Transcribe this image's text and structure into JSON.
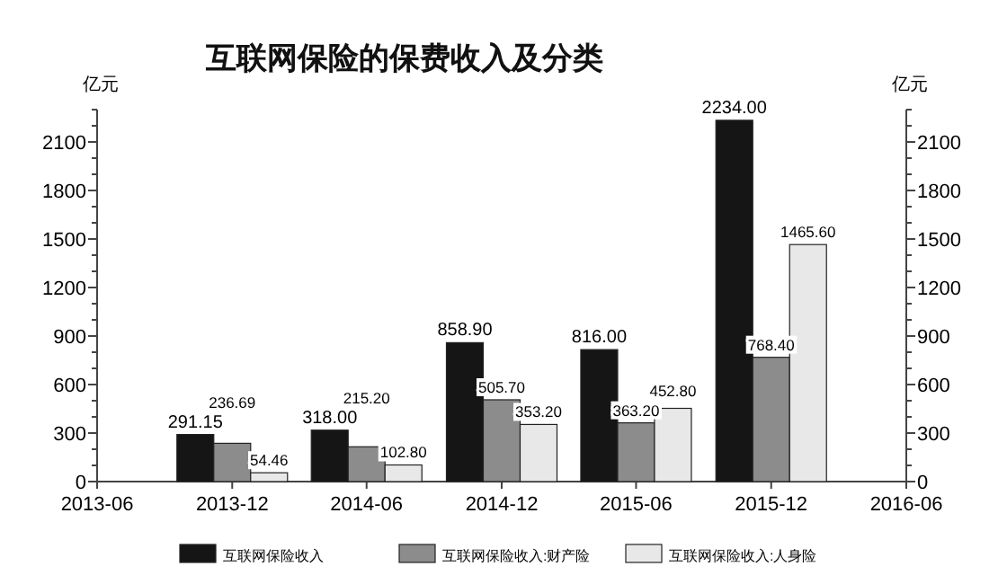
{
  "chart_data": {
    "type": "bar",
    "title": "互联网保险的保费收入及分类",
    "ylabel": "亿元",
    "y2label": "亿元",
    "x": [
      "2013-12",
      "2014-06",
      "2014-12",
      "2015-06",
      "2015-12"
    ],
    "xlim": [
      "2013-06",
      "2016-06"
    ],
    "xticks": [
      "2013-06",
      "2013-12",
      "2014-06",
      "2014-12",
      "2015-06",
      "2015-12",
      "2016-06"
    ],
    "ylim": [
      0,
      2300
    ],
    "yticks": [
      {
        "value": 0,
        "label": "0"
      },
      {
        "value": 100,
        "label": null
      },
      {
        "value": 200,
        "label": null
      },
      {
        "value": 300,
        "label": "300"
      },
      {
        "value": 400,
        "label": null
      },
      {
        "value": 500,
        "label": null
      },
      {
        "value": 600,
        "label": "600"
      },
      {
        "value": 700,
        "label": null
      },
      {
        "value": 800,
        "label": null
      },
      {
        "value": 900,
        "label": "900"
      },
      {
        "value": 1000,
        "label": null
      },
      {
        "value": 1100,
        "label": null
      },
      {
        "value": 1200,
        "label": "1200"
      },
      {
        "value": 1300,
        "label": null
      },
      {
        "value": 1400,
        "label": null
      },
      {
        "value": 1500,
        "label": "1500"
      },
      {
        "value": 1600,
        "label": null
      },
      {
        "value": 1700,
        "label": null
      },
      {
        "value": 1800,
        "label": "1800"
      },
      {
        "value": 1900,
        "label": null
      },
      {
        "value": 2000,
        "label": null
      },
      {
        "value": 2100,
        "label": "2100"
      },
      {
        "value": 2200,
        "label": null
      },
      {
        "value": 2300,
        "label": null
      }
    ],
    "y2lim": [
      0,
      2300
    ],
    "y2ticks": [
      {
        "value": 0,
        "label": "0"
      },
      {
        "value": 100,
        "label": null
      },
      {
        "value": 200,
        "label": null
      },
      {
        "value": 300,
        "label": "300"
      },
      {
        "value": 400,
        "label": null
      },
      {
        "value": 500,
        "label": null
      },
      {
        "value": 600,
        "label": "600"
      },
      {
        "value": 700,
        "label": null
      },
      {
        "value": 800,
        "label": null
      },
      {
        "value": 900,
        "label": "900"
      },
      {
        "value": 1000,
        "label": null
      },
      {
        "value": 1100,
        "label": null
      },
      {
        "value": 1200,
        "label": "1200"
      },
      {
        "value": 1300,
        "label": null
      },
      {
        "value": 1400,
        "label": null
      },
      {
        "value": 1500,
        "label": "1500"
      },
      {
        "value": 1600,
        "label": null
      },
      {
        "value": 1700,
        "label": null
      },
      {
        "value": 1800,
        "label": "1800"
      },
      {
        "value": 1900,
        "label": null
      },
      {
        "value": 2000,
        "label": null
      },
      {
        "value": 2100,
        "label": "2100"
      },
      {
        "value": 2200,
        "label": null
      },
      {
        "value": 2300,
        "label": null
      }
    ],
    "legend": "bottom",
    "grid": false,
    "series": [
      {
        "name": "互联网保险收入",
        "color": "#151515",
        "values": [
          291.15,
          318.0,
          858.9,
          816.0,
          2234.0
        ],
        "value_labels": [
          "291.15",
          "318.00",
          "858.90",
          "816.00",
          "2234.00"
        ]
      },
      {
        "name": "互联网保险收入:财产险",
        "color": "#8c8c8c",
        "values": [
          236.69,
          215.2,
          505.7,
          363.2,
          768.4
        ],
        "value_labels": [
          "236.69",
          "215.20",
          "505.70",
          "363.20",
          "768.40"
        ]
      },
      {
        "name": "互联网保险收入:人身险",
        "color": "#e8e8e8",
        "values": [
          54.46,
          102.8,
          353.2,
          452.8,
          1465.6
        ],
        "value_labels": [
          "54.46",
          "102.80",
          "353.20",
          "452.80",
          "1465.60"
        ]
      }
    ]
  }
}
